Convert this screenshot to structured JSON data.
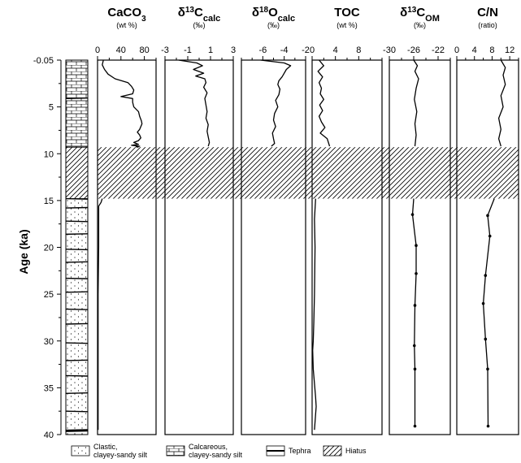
{
  "y_axis": {
    "label": "Age (ka)",
    "ticks": [
      "-0.05",
      "5",
      "10",
      "15",
      "20",
      "25",
      "30",
      "35",
      "40"
    ],
    "range": [
      0,
      40
    ],
    "reversed": true
  },
  "hiatus_range": [
    9.3,
    14.8
  ],
  "lithology": {
    "units": [
      {
        "type": "calcareous",
        "from": 0,
        "to": 9.3
      },
      {
        "type": "hiatus",
        "from": 9.3,
        "to": 14.8
      },
      {
        "type": "clastic",
        "from": 14.8,
        "to": 40
      }
    ],
    "tephra_layers": [
      4.1,
      14.8,
      15.8,
      17.2,
      18.6,
      20.2,
      21.6,
      23.3,
      24.8,
      26.6,
      28.2,
      30.2,
      32.1,
      33.7,
      35.6,
      37.5,
      39.6
    ]
  },
  "legend": [
    {
      "swatch": "clastic",
      "label_line1": "Clastic,",
      "label_line2": "clayey-sandy silt"
    },
    {
      "swatch": "calcareous",
      "label_line1": "Calcareous,",
      "label_line2": "clayey-sandy silt"
    },
    {
      "swatch": "tephra",
      "label_line1": "Tephra",
      "label_line2": ""
    },
    {
      "swatch": "hiatus",
      "label_line1": "Hiatus",
      "label_line2": ""
    }
  ],
  "chart_data": [
    {
      "type": "line",
      "title_main": "CaCO",
      "title_sub": "3",
      "title_post": "",
      "unit": "(wt %)",
      "xlim": [
        0,
        100
      ],
      "xticks": [
        "0",
        "40",
        "80"
      ],
      "xtick_values": [
        0,
        40,
        80
      ],
      "minor_ticks": [
        20,
        60,
        100
      ],
      "x": [
        10,
        8,
        12,
        18,
        30,
        52,
        58,
        62,
        60,
        40,
        60,
        60,
        62,
        70,
        72,
        75,
        76,
        74,
        72,
        68,
        72,
        74,
        70,
        62,
        70,
        58,
        72,
        66,
        70,
        8,
        6,
        2,
        2,
        2,
        2,
        1,
        1,
        1,
        1
      ],
      "y": [
        0,
        0.5,
        1.0,
        1.5,
        2.0,
        2.4,
        2.8,
        3.2,
        3.6,
        3.9,
        4.1,
        4.5,
        5.0,
        5.5,
        6.0,
        6.5,
        6.8,
        7.1,
        7.4,
        7.7,
        8.0,
        8.3,
        8.6,
        8.8,
        9.0,
        9.1,
        9.2,
        9.25,
        9.3,
        14.8,
        15.2,
        15.6,
        16.0,
        17,
        20,
        25,
        30,
        35,
        39.5
      ],
      "gap_at_index": 28
    },
    {
      "type": "line",
      "title_main": "δ",
      "title_sup": "13",
      "title_post": "C",
      "title_sub2": "calc",
      "unit": "(‰)",
      "xlim": [
        -3,
        3
      ],
      "xticks": [
        "-3",
        "-1",
        "1",
        "3"
      ],
      "xtick_values": [
        -3,
        -1,
        1,
        3
      ],
      "minor_ticks": [
        -2,
        0,
        2
      ],
      "x": [
        -1.8,
        -0.2,
        0.3,
        -0.5,
        0.4,
        -0.3,
        0.5,
        0.6,
        0.4,
        0.7,
        0.5,
        0.6,
        0.7,
        0.6,
        0.8,
        0.7,
        0.8,
        0.9,
        0.8
      ],
      "y": [
        0,
        0.3,
        0.6,
        1.0,
        1.4,
        1.7,
        2.0,
        2.4,
        2.9,
        3.5,
        4.1,
        4.8,
        5.5,
        6.2,
        6.9,
        7.6,
        8.2,
        8.8,
        9.2
      ]
    },
    {
      "type": "line",
      "title_main": "δ",
      "title_sup": "18",
      "title_post": "O",
      "title_sub2": "calc",
      "unit": "(‰)",
      "xlim": [
        -8,
        -2
      ],
      "xticks": [
        "-6",
        "-4",
        "-2"
      ],
      "xtick_values": [
        -6,
        -4,
        -2
      ],
      "minor_ticks": [
        -8,
        -7,
        -5,
        -3
      ],
      "x": [
        -6.2,
        -4.0,
        -3.4,
        -3.8,
        -4.0,
        -4.2,
        -4.5,
        -4.6,
        -4.4,
        -4.5,
        -4.8,
        -4.6,
        -4.9,
        -5.0,
        -4.8,
        -5.1,
        -5.0,
        -4.9,
        -5.2
      ],
      "y": [
        0,
        0.3,
        0.6,
        1.0,
        1.4,
        1.8,
        2.2,
        2.6,
        3.1,
        3.7,
        4.3,
        5.0,
        5.7,
        6.4,
        7.1,
        7.8,
        8.4,
        8.9,
        9.2
      ]
    },
    {
      "type": "line",
      "title_main": "TOC",
      "title_sup": "",
      "title_post": "",
      "unit": "(wt %)",
      "xlim": [
        0,
        12
      ],
      "xticks": [
        "0",
        "4",
        "8"
      ],
      "xtick_values": [
        0,
        4,
        8
      ],
      "minor_ticks": [
        2,
        6,
        10,
        12
      ],
      "x": [
        1.2,
        2.0,
        1.0,
        1.8,
        1.2,
        1.6,
        1.4,
        2.0,
        1.3,
        1.8,
        1.2,
        1.6,
        2.2,
        1.4,
        2.6,
        3.0,
        0.6,
        0.4,
        0.5,
        0.4,
        0.3,
        0.2,
        0.1,
        0.2,
        0.6,
        0.7,
        0.4
      ],
      "y": [
        0,
        0.6,
        1.2,
        1.8,
        2.4,
        3.0,
        3.6,
        4.2,
        4.8,
        5.4,
        6.0,
        6.6,
        7.2,
        7.8,
        8.4,
        9.2,
        14.8,
        17,
        20,
        25,
        28,
        30,
        31,
        33,
        36,
        37,
        39.5
      ],
      "gap_at_index": 15
    },
    {
      "type": "line",
      "title_main": "δ",
      "title_sup": "13",
      "title_post": "C",
      "title_sub2": "OM",
      "unit": "(‰)",
      "xlim": [
        -30,
        -20
      ],
      "xticks": [
        "-30",
        "-26",
        "-22"
      ],
      "xtick_values": [
        -30,
        -26,
        -22
      ],
      "minor_ticks": [
        -28,
        -24,
        -20
      ],
      "x": [
        -26.0,
        -25.4,
        -25.8,
        -25.2,
        -25.6,
        -25.9,
        -25.5,
        -25.8,
        -25.6,
        -25.8,
        -26.0,
        -26.2,
        -25.6,
        -25.6,
        -25.8,
        -25.9,
        -25.8,
        -25.8
      ],
      "y": [
        0,
        0.6,
        1.2,
        2.0,
        3.0,
        4.2,
        5.5,
        6.8,
        8.0,
        9.2,
        14.8,
        16.5,
        19.8,
        22.8,
        26.2,
        30.5,
        33.0,
        39.1
      ],
      "gap_at_index": 9,
      "markers_from_index": 11
    },
    {
      "type": "line",
      "title_main": "C/N",
      "title_sup": "",
      "title_post": "",
      "unit": "(ratio)",
      "xlim": [
        0,
        14
      ],
      "xticks": [
        "0",
        "4",
        "8",
        "12"
      ],
      "xtick_values": [
        0,
        4,
        8,
        12
      ],
      "minor_ticks": [
        2,
        6,
        10,
        14
      ],
      "x": [
        10,
        11,
        10.5,
        11,
        10,
        10.5,
        9.5,
        10,
        9.5,
        10,
        8.5,
        7,
        7.5,
        6.5,
        6,
        6.5,
        7.0,
        7.1
      ],
      "y": [
        0,
        0.8,
        1.6,
        2.6,
        3.8,
        5.0,
        6.2,
        7.4,
        8.4,
        9.2,
        14.8,
        16.6,
        18.8,
        23.0,
        26.0,
        29.8,
        33.0,
        39.1
      ],
      "gap_at_index": 9,
      "markers_from_index": 11
    }
  ]
}
